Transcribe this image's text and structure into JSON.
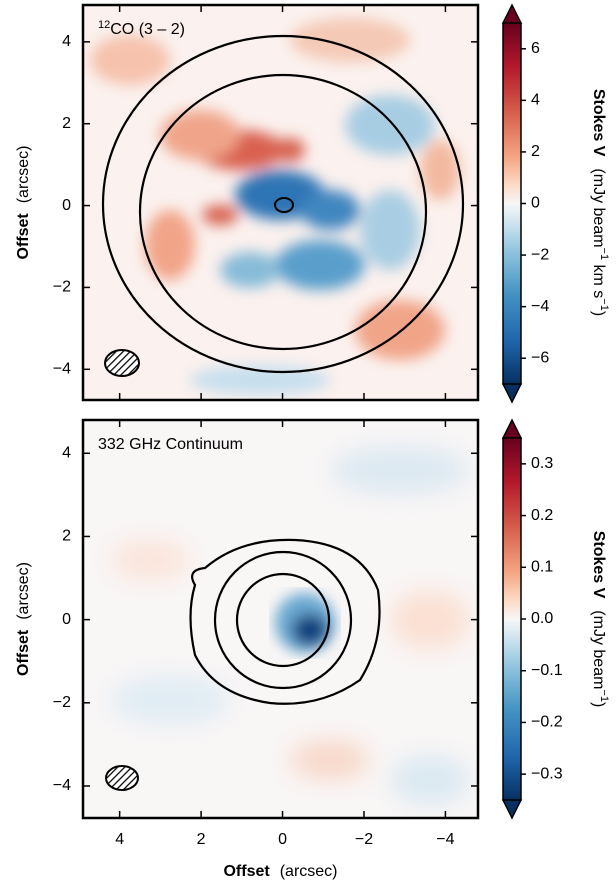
{
  "chart_data": [
    {
      "type": "heatmap",
      "annotation": {
        "sup": "12",
        "text": "CO (3 – 2)"
      },
      "ylabel": "Offset",
      "yunit": "(arcsec)",
      "xlim": [
        4.9,
        -4.8
      ],
      "ylim": [
        -4.75,
        4.9
      ],
      "xticks": [
        4,
        2,
        0,
        {
          "value": -2,
          "label": "−2"
        },
        {
          "value": -4,
          "label": "−4"
        }
      ],
      "yticks": [
        4,
        2,
        0,
        {
          "value": -2,
          "label": "−2"
        },
        {
          "value": -4,
          "label": "−4"
        }
      ],
      "clim": [
        -7,
        7
      ],
      "cticks": [
        6,
        4,
        2,
        0,
        {
          "value": -2,
          "label": "−2"
        },
        {
          "value": -4,
          "label": "−4"
        },
        {
          "value": -6,
          "label": "−6"
        }
      ],
      "colorbar_label": "Stokes V",
      "colorbar_unit": [
        "(mJy beam",
        "−1",
        " km s",
        "−1",
        ")"
      ]
    },
    {
      "type": "heatmap",
      "annotation": {
        "text": "332 GHz Continuum"
      },
      "xlabel": "Offset",
      "xunit": "(arcsec)",
      "ylabel": "Offset",
      "yunit": "(arcsec)",
      "xlim": [
        4.9,
        -4.8
      ],
      "ylim": [
        -4.77,
        4.8
      ],
      "xticks": [
        4,
        2,
        0,
        {
          "value": -2,
          "label": "−2"
        },
        {
          "value": -4,
          "label": "−4"
        }
      ],
      "yticks": [
        4,
        2,
        0,
        {
          "value": -2,
          "label": "−2"
        },
        {
          "value": -4,
          "label": "−4"
        }
      ],
      "clim": [
        -0.35,
        0.35
      ],
      "cticks": [
        0.3,
        0.2,
        0.1,
        {
          "value": 0,
          "label": "0.0"
        },
        {
          "value": -0.1,
          "label": "−0.1"
        },
        {
          "value": -0.2,
          "label": "−0.2"
        },
        {
          "value": -0.3,
          "label": "−0.3"
        }
      ],
      "colorbar_label": "Stokes V",
      "colorbar_unit": [
        "(mJy beam",
        "−1",
        ")"
      ]
    }
  ]
}
